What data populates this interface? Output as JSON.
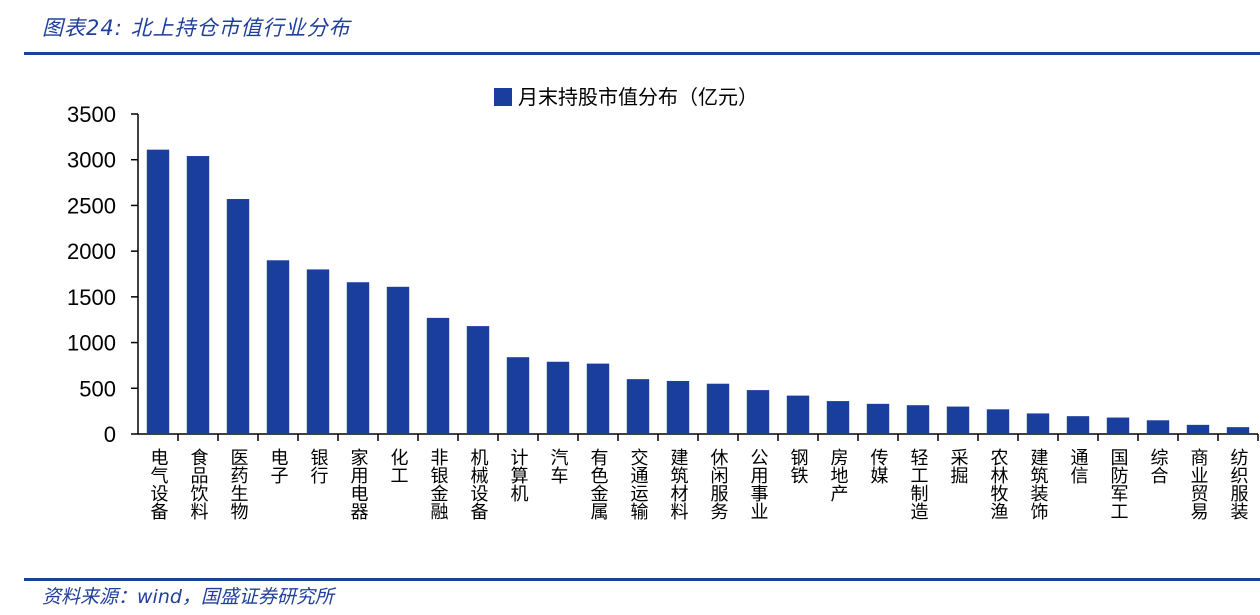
{
  "figure": {
    "title": "图表24:  北上持仓市值行业分布",
    "source": "资料来源：wind，国盛证券研究所"
  },
  "colors": {
    "bar": "#1a3e9e",
    "rule": "#1f3f9b",
    "axis": "#000000"
  },
  "chart_data": {
    "type": "bar",
    "legend": "月末持股市值分布（亿元）",
    "legend_position": "top-center",
    "grid": false,
    "ylim": [
      0,
      3500
    ],
    "yticks": [
      0,
      500,
      1000,
      1500,
      2000,
      2500,
      3000,
      3500
    ],
    "categories": [
      "电气设备",
      "食品饮料",
      "医药生物",
      "电子",
      "银行",
      "家用电器",
      "化工",
      "非银金融",
      "机械设备",
      "计算机",
      "汽车",
      "有色金属",
      "交通运输",
      "建筑材料",
      "休闲服务",
      "公用事业",
      "钢铁",
      "房地产",
      "传媒",
      "轻工制造",
      "采掘",
      "农林牧渔",
      "建筑装饰",
      "通信",
      "国防军工",
      "综合",
      "商业贸易",
      "纺织服装"
    ],
    "series": [
      {
        "name": "月末持股市值分布（亿元）",
        "values": [
          3110,
          3040,
          2570,
          1900,
          1800,
          1660,
          1610,
          1270,
          1180,
          840,
          790,
          770,
          600,
          580,
          550,
          480,
          420,
          360,
          330,
          315,
          300,
          270,
          225,
          195,
          180,
          150,
          100,
          75
        ]
      }
    ]
  }
}
